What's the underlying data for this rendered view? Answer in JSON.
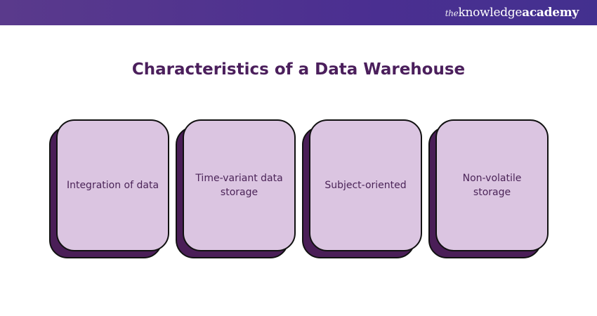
{
  "header": {
    "brand_prefix": "the",
    "brand_main": "knowledge",
    "brand_suffix": "academy"
  },
  "title": "Characteristics of a Data Warehouse",
  "cards": [
    {
      "label": "Integration of data"
    },
    {
      "label": "Time-variant data storage"
    },
    {
      "label": "Subject-oriented"
    },
    {
      "label": "Non-volatile storage"
    }
  ],
  "colors": {
    "header": "#4b2f91",
    "title": "#4b1f5c",
    "card_fill": "#dbc5e1",
    "card_shadow": "#4a1e57"
  }
}
